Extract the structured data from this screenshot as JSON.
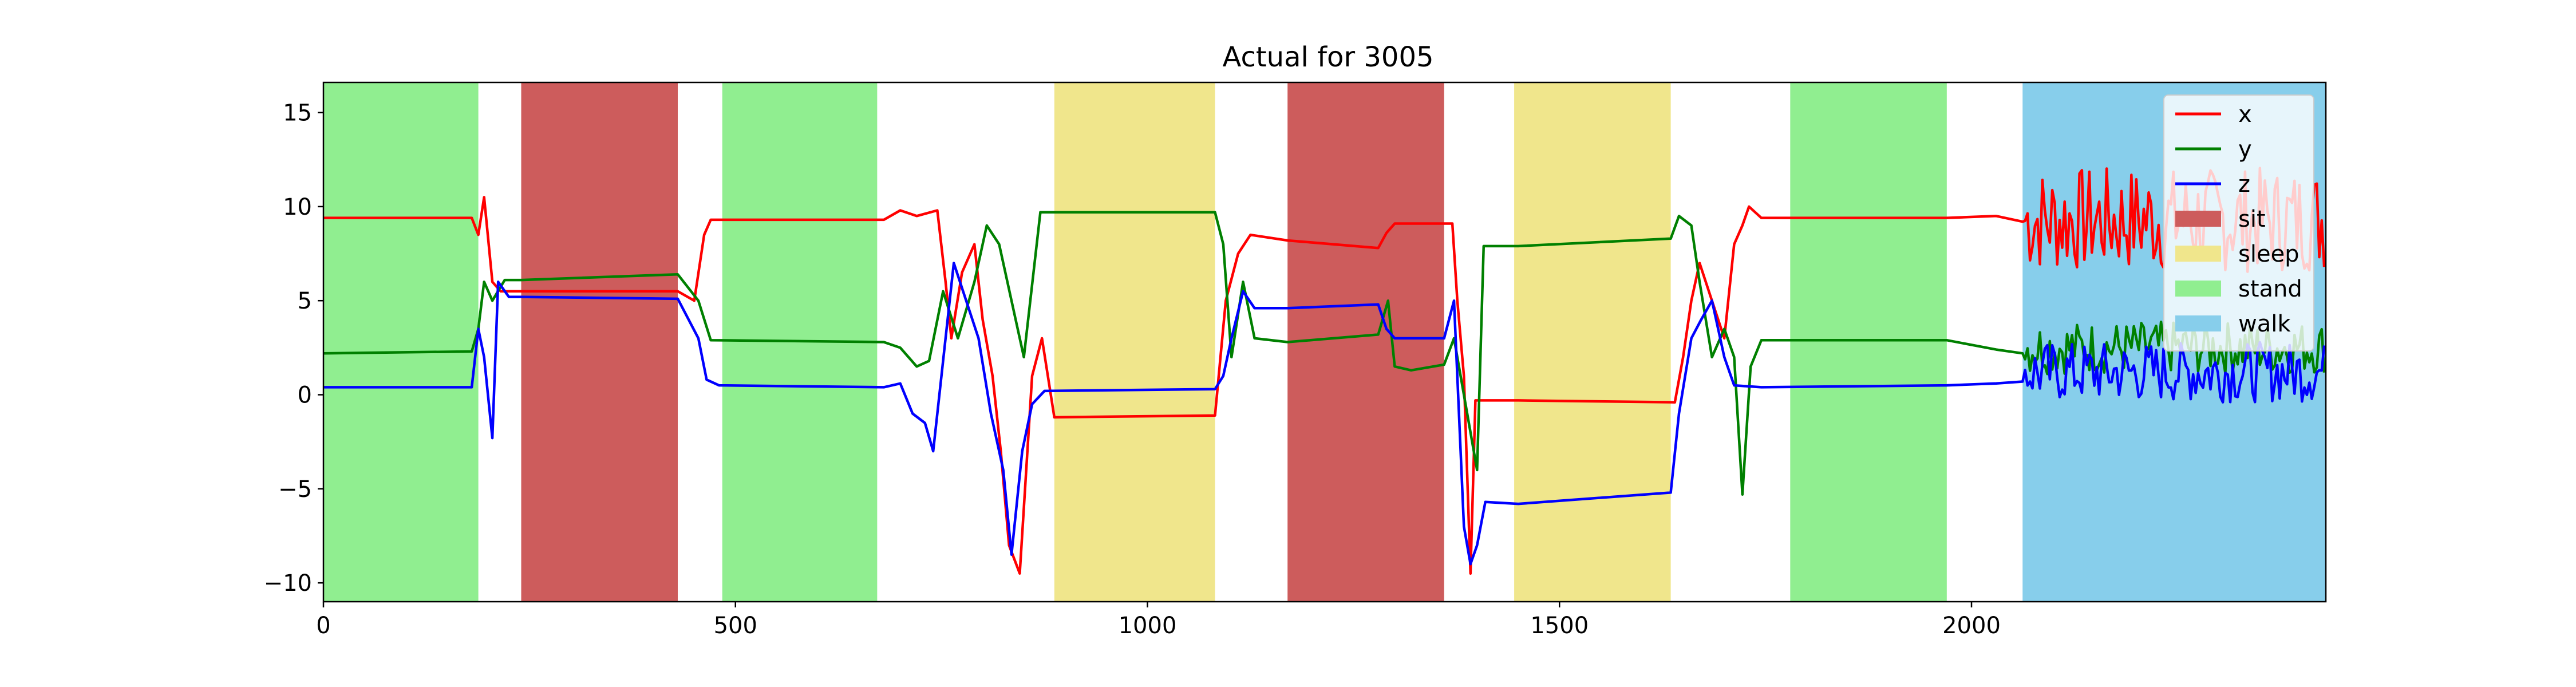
{
  "chart_data": {
    "type": "line",
    "title": "Actual for 3005",
    "xlim": [
      0,
      2430
    ],
    "ylim": [
      -11,
      16.6
    ],
    "x_ticks": [
      0,
      500,
      1000,
      1500,
      2000
    ],
    "y_ticks": [
      -10,
      -5,
      0,
      5,
      10,
      15
    ],
    "grid": false,
    "legend_position": "upper right",
    "activity_bands": [
      {
        "label": "stand",
        "start": 0,
        "end": 188
      },
      {
        "label": "sit",
        "start": 240,
        "end": 430
      },
      {
        "label": "stand",
        "start": 484,
        "end": 672
      },
      {
        "label": "sleep",
        "start": 887,
        "end": 1082
      },
      {
        "label": "sit",
        "start": 1170,
        "end": 1360
      },
      {
        "label": "sleep",
        "start": 1445,
        "end": 1635
      },
      {
        "label": "stand",
        "start": 1780,
        "end": 1970
      },
      {
        "label": "walk",
        "start": 2062,
        "end": 2430
      }
    ],
    "categories": [
      {
        "name": "sit",
        "color": "#CD5C5C"
      },
      {
        "name": "sleep",
        "color": "#F0E68C"
      },
      {
        "name": "stand",
        "color": "#90EE90"
      },
      {
        "name": "walk",
        "color": "#87CEEB"
      }
    ],
    "series": [
      {
        "name": "x",
        "color": "#ff0000",
        "points": [
          [
            0,
            9.4
          ],
          [
            180,
            9.4
          ],
          [
            188,
            8.5
          ],
          [
            195,
            10.5
          ],
          [
            205,
            6
          ],
          [
            215,
            5.5
          ],
          [
            240,
            5.5
          ],
          [
            430,
            5.5
          ],
          [
            450,
            5
          ],
          [
            462,
            8.5
          ],
          [
            470,
            9.3
          ],
          [
            680,
            9.3
          ],
          [
            700,
            9.8
          ],
          [
            720,
            9.5
          ],
          [
            745,
            9.8
          ],
          [
            755,
            6
          ],
          [
            762,
            3
          ],
          [
            775,
            6.5
          ],
          [
            790,
            8
          ],
          [
            800,
            4
          ],
          [
            812,
            1
          ],
          [
            822,
            -3
          ],
          [
            832,
            -8
          ],
          [
            845,
            -9.5
          ],
          [
            860,
            1
          ],
          [
            872,
            3
          ],
          [
            887,
            -1.2
          ],
          [
            1082,
            -1.1
          ],
          [
            1095,
            5
          ],
          [
            1110,
            7.5
          ],
          [
            1125,
            8.5
          ],
          [
            1170,
            8.2
          ],
          [
            1280,
            7.8
          ],
          [
            1290,
            8.6
          ],
          [
            1300,
            9.1
          ],
          [
            1370,
            9.1
          ],
          [
            1376,
            5
          ],
          [
            1384,
            1
          ],
          [
            1392,
            -9.5
          ],
          [
            1398,
            -0.3
          ],
          [
            1450,
            -0.3
          ],
          [
            1640,
            -0.4
          ],
          [
            1650,
            2
          ],
          [
            1660,
            5
          ],
          [
            1670,
            7
          ],
          [
            1685,
            5
          ],
          [
            1700,
            3
          ],
          [
            1712,
            8
          ],
          [
            1722,
            9
          ],
          [
            1730,
            10
          ],
          [
            1745,
            9.4
          ],
          [
            1970,
            9.4
          ],
          [
            2030,
            9.5
          ],
          [
            2062,
            9.2
          ]
        ]
      },
      {
        "name": "y",
        "color": "#008000",
        "points": [
          [
            0,
            2.2
          ],
          [
            180,
            2.3
          ],
          [
            188,
            3.5
          ],
          [
            195,
            6
          ],
          [
            205,
            5
          ],
          [
            220,
            6.1
          ],
          [
            240,
            6.1
          ],
          [
            430,
            6.4
          ],
          [
            455,
            5
          ],
          [
            470,
            2.9
          ],
          [
            680,
            2.8
          ],
          [
            700,
            2.5
          ],
          [
            720,
            1.5
          ],
          [
            735,
            1.8
          ],
          [
            752,
            5.5
          ],
          [
            770,
            3
          ],
          [
            790,
            6
          ],
          [
            805,
            9
          ],
          [
            820,
            8
          ],
          [
            835,
            5
          ],
          [
            850,
            2
          ],
          [
            870,
            9.7
          ],
          [
            1082,
            9.7
          ],
          [
            1092,
            8
          ],
          [
            1102,
            2
          ],
          [
            1116,
            6
          ],
          [
            1130,
            3
          ],
          [
            1170,
            2.8
          ],
          [
            1280,
            3.2
          ],
          [
            1292,
            5
          ],
          [
            1300,
            1.5
          ],
          [
            1320,
            1.3
          ],
          [
            1360,
            1.6
          ],
          [
            1372,
            3
          ],
          [
            1382,
            0.5
          ],
          [
            1392,
            -2
          ],
          [
            1400,
            -4
          ],
          [
            1408,
            7.9
          ],
          [
            1450,
            7.9
          ],
          [
            1635,
            8.3
          ],
          [
            1645,
            9.5
          ],
          [
            1660,
            9
          ],
          [
            1670,
            6
          ],
          [
            1685,
            2
          ],
          [
            1700,
            3.5
          ],
          [
            1712,
            2
          ],
          [
            1722,
            -5.3
          ],
          [
            1732,
            1.5
          ],
          [
            1745,
            2.9
          ],
          [
            1970,
            2.9
          ],
          [
            2030,
            2.4
          ],
          [
            2062,
            2.2
          ]
        ]
      },
      {
        "name": "z",
        "color": "#0000ff",
        "points": [
          [
            0,
            0.4
          ],
          [
            180,
            0.4
          ],
          [
            188,
            3.5
          ],
          [
            195,
            2
          ],
          [
            205,
            -2.3
          ],
          [
            212,
            6
          ],
          [
            225,
            5.2
          ],
          [
            240,
            5.2
          ],
          [
            430,
            5.1
          ],
          [
            455,
            3
          ],
          [
            465,
            0.8
          ],
          [
            480,
            0.5
          ],
          [
            680,
            0.4
          ],
          [
            700,
            0.6
          ],
          [
            715,
            -1
          ],
          [
            730,
            -1.5
          ],
          [
            740,
            -3
          ],
          [
            750,
            1
          ],
          [
            765,
            7
          ],
          [
            780,
            5
          ],
          [
            795,
            3
          ],
          [
            810,
            -1
          ],
          [
            825,
            -4
          ],
          [
            835,
            -8.5
          ],
          [
            848,
            -3
          ],
          [
            860,
            -0.5
          ],
          [
            875,
            0.2
          ],
          [
            1082,
            0.3
          ],
          [
            1092,
            1
          ],
          [
            1102,
            3
          ],
          [
            1116,
            5.5
          ],
          [
            1130,
            4.6
          ],
          [
            1170,
            4.6
          ],
          [
            1280,
            4.8
          ],
          [
            1290,
            3.5
          ],
          [
            1300,
            3
          ],
          [
            1360,
            3
          ],
          [
            1372,
            5
          ],
          [
            1384,
            -7
          ],
          [
            1392,
            -9
          ],
          [
            1400,
            -8
          ],
          [
            1410,
            -5.7
          ],
          [
            1450,
            -5.8
          ],
          [
            1635,
            -5.2
          ],
          [
            1645,
            -1
          ],
          [
            1660,
            3
          ],
          [
            1672,
            4
          ],
          [
            1685,
            5
          ],
          [
            1700,
            2
          ],
          [
            1712,
            0.5
          ],
          [
            1745,
            0.4
          ],
          [
            1970,
            0.5
          ],
          [
            2030,
            0.6
          ],
          [
            2062,
            0.7
          ]
        ]
      }
    ],
    "walk_segment": {
      "start": 2062,
      "end": 2430,
      "x_mean": 9.3,
      "x_amplitude": 2.8,
      "y_mean": 2.5,
      "y_amplitude": 1.4,
      "z_mean": 1.2,
      "z_amplitude": 1.6
    }
  }
}
